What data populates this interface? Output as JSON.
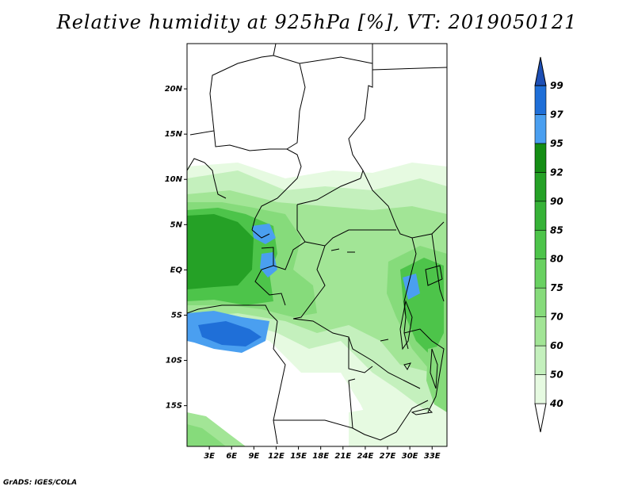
{
  "title": "Relative humidity at 925hPa [%], VT: 2019050121",
  "credit": "GrADS: IGES/COLA",
  "map": {
    "lon_range": [
      0,
      35
    ],
    "lat_range": [
      -19.5,
      25
    ],
    "lat_ticks": [
      {
        "value": 20,
        "label": "20N"
      },
      {
        "value": 15,
        "label": "15N"
      },
      {
        "value": 10,
        "label": "10N"
      },
      {
        "value": 5,
        "label": "5N"
      },
      {
        "value": 0,
        "label": "EQ"
      },
      {
        "value": -5,
        "label": "5S"
      },
      {
        "value": -10,
        "label": "10S"
      },
      {
        "value": -15,
        "label": "15S"
      }
    ],
    "lon_ticks": [
      {
        "value": 3,
        "label": "3E"
      },
      {
        "value": 6,
        "label": "6E"
      },
      {
        "value": 9,
        "label": "9E"
      },
      {
        "value": 12,
        "label": "12E"
      },
      {
        "value": 15,
        "label": "15E"
      },
      {
        "value": 18,
        "label": "18E"
      },
      {
        "value": 21,
        "label": "21E"
      },
      {
        "value": 24,
        "label": "24E"
      },
      {
        "value": 27,
        "label": "27E"
      },
      {
        "value": 30,
        "label": "30E"
      },
      {
        "value": 33,
        "label": "33E"
      }
    ]
  },
  "colorbar": {
    "levels": [
      "40",
      "50",
      "60",
      "70",
      "75",
      "80",
      "85",
      "90",
      "92",
      "95",
      "97",
      "99"
    ],
    "colors": [
      "#ffffff",
      "#e6fae1",
      "#c4f0bd",
      "#a2e596",
      "#86db7b",
      "#69d161",
      "#4dc44a",
      "#36b237",
      "#25a126",
      "#148d14",
      "#4a9ff0",
      "#1f6fd8",
      "#1d4fb5"
    ]
  },
  "colors": {
    "rh_40_50": "#e6fae1",
    "rh_50_60": "#c4f0bd",
    "rh_60_70": "#a2e596",
    "rh_70_80": "#86db7b",
    "rh_80_90": "#4dc44a",
    "rh_90_95": "#25a126",
    "rh_95_97": "#4a9ff0",
    "rh_97_99": "#1f6fd8"
  }
}
